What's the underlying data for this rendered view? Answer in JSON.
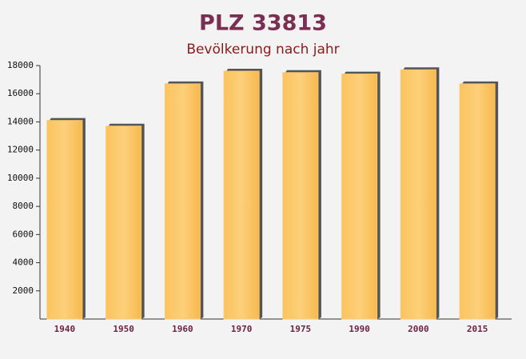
{
  "chart_data": {
    "type": "bar",
    "title": "PLZ 33813",
    "subtitle": "Bevölkerung nach jahr",
    "categories": [
      "1940",
      "1950",
      "1960",
      "1970",
      "1975",
      "1990",
      "2000",
      "2015"
    ],
    "values": [
      14100,
      13700,
      16700,
      17600,
      17500,
      17400,
      17700,
      16700
    ],
    "color": "#fcc96a",
    "ylim": [
      0,
      18000
    ],
    "yticks": [
      2000,
      4000,
      6000,
      8000,
      10000,
      12000,
      14000,
      16000,
      18000
    ]
  }
}
